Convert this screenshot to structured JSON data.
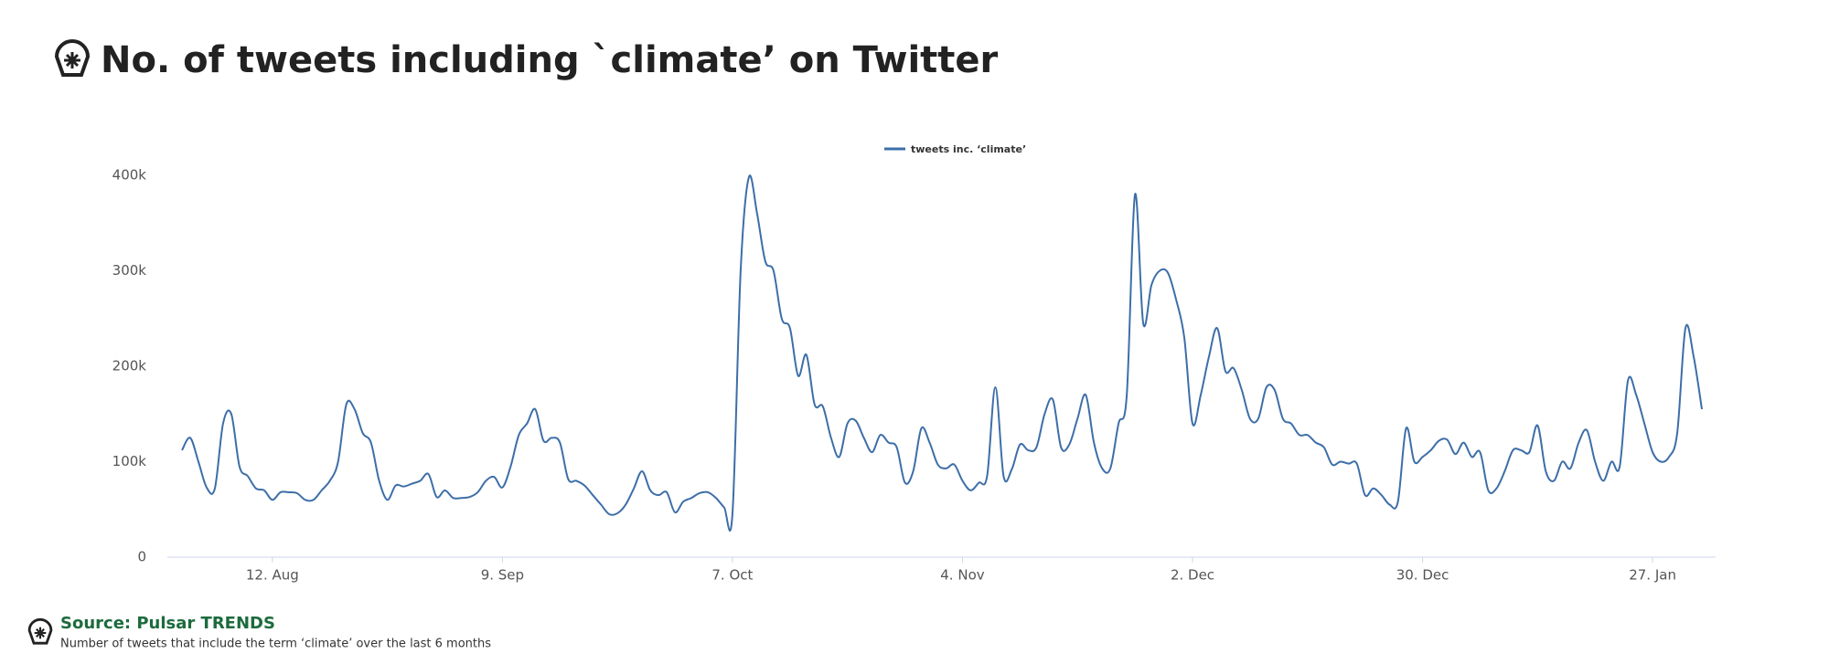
{
  "chart_data": {
    "type": "line",
    "title": "No. of tweets including `climate’ on Twitter",
    "source": "Source: Pulsar TRENDS",
    "note": "Number of tweets that include the term ‘climate’ over the last 6 months",
    "x": [
      "1. Aug",
      "2. Aug",
      "3. Aug",
      "4. Aug",
      "5. Aug",
      "6. Aug",
      "7. Aug",
      "8. Aug",
      "9. Aug",
      "10. Aug",
      "11. Aug",
      "12. Aug",
      "13. Aug",
      "14. Aug",
      "15. Aug",
      "16. Aug",
      "17. Aug",
      "18. Aug",
      "19. Aug",
      "20. Aug",
      "21. Aug",
      "22. Aug",
      "23. Aug",
      "24. Aug",
      "25. Aug",
      "26. Aug",
      "27. Aug",
      "28. Aug",
      "29. Aug",
      "30. Aug",
      "31. Aug",
      "1. Sep",
      "2. Sep",
      "3. Sep",
      "4. Sep",
      "5. Sep",
      "6. Sep",
      "7. Sep",
      "8. Sep",
      "9. Sep",
      "10. Sep",
      "11. Sep",
      "12. Sep",
      "13. Sep",
      "14. Sep",
      "15. Sep",
      "16. Sep",
      "17. Sep",
      "18. Sep",
      "19. Sep",
      "20. Sep",
      "21. Sep",
      "22. Sep",
      "23. Sep",
      "24. Sep",
      "25. Sep",
      "26. Sep",
      "27. Sep",
      "28. Sep",
      "29. Sep",
      "30. Sep",
      "1. Oct",
      "2. Oct",
      "3. Oct",
      "4. Oct",
      "5. Oct",
      "6. Oct",
      "7. Oct",
      "8. Oct",
      "9. Oct",
      "10. Oct",
      "11. Oct",
      "12. Oct",
      "13. Oct",
      "14. Oct",
      "15. Oct",
      "16. Oct",
      "17. Oct",
      "18. Oct",
      "19. Oct",
      "20. Oct",
      "21. Oct",
      "22. Oct",
      "23. Oct",
      "24. Oct",
      "25. Oct",
      "26. Oct",
      "27. Oct",
      "28. Oct",
      "29. Oct",
      "30. Oct",
      "31. Oct",
      "1. Nov",
      "2. Nov",
      "3. Nov",
      "4. Nov",
      "5. Nov",
      "6. Nov",
      "7. Nov",
      "8. Nov",
      "9. Nov",
      "10. Nov",
      "11. Nov",
      "12. Nov",
      "13. Nov",
      "14. Nov",
      "15. Nov",
      "16. Nov",
      "17. Nov",
      "18. Nov",
      "19. Nov",
      "20. Nov",
      "21. Nov",
      "22. Nov",
      "23. Nov",
      "24. Nov",
      "25. Nov",
      "26. Nov",
      "27. Nov",
      "28. Nov",
      "29. Nov",
      "30. Nov",
      "1. Dec",
      "2. Dec",
      "3. Dec",
      "4. Dec",
      "5. Dec",
      "6. Dec",
      "7. Dec",
      "8. Dec",
      "9. Dec",
      "10. Dec",
      "11. Dec",
      "12. Dec",
      "13. Dec",
      "14. Dec",
      "15. Dec",
      "16. Dec",
      "17. Dec",
      "18. Dec",
      "19. Dec",
      "20. Dec",
      "21. Dec",
      "22. Dec",
      "23. Dec",
      "24. Dec",
      "25. Dec",
      "26. Dec",
      "27. Dec",
      "28. Dec",
      "29. Dec",
      "30. Dec",
      "31. Dec",
      "1. Jan",
      "2. Jan",
      "3. Jan",
      "4. Jan",
      "5. Jan",
      "6. Jan",
      "7. Jan",
      "8. Jan",
      "9. Jan",
      "10. Jan",
      "11. Jan",
      "12. Jan",
      "13. Jan",
      "14. Jan",
      "15. Jan",
      "16. Jan",
      "17. Jan",
      "18. Jan",
      "19. Jan",
      "20. Jan",
      "21. Jan",
      "22. Jan",
      "23. Jan",
      "24. Jan",
      "25. Jan",
      "26. Jan",
      "27. Jan",
      "28. Jan",
      "29. Jan",
      "30. Jan",
      "31. Jan",
      "1. Feb",
      "2. Feb"
    ],
    "series": [
      {
        "name": "tweets inc. ‘climate’",
        "color": "#3d6ea8",
        "values": [
          112000,
          125000,
          100000,
          73000,
          72000,
          140000,
          150000,
          95000,
          85000,
          72000,
          70000,
          60000,
          68000,
          68000,
          67000,
          60000,
          60000,
          70000,
          80000,
          100000,
          160000,
          155000,
          130000,
          120000,
          80000,
          60000,
          75000,
          74000,
          77000,
          80000,
          87000,
          63000,
          70000,
          62000,
          62000,
          63000,
          68000,
          80000,
          84000,
          73000,
          95000,
          128000,
          140000,
          155000,
          122000,
          125000,
          120000,
          82000,
          80000,
          75000,
          65000,
          55000,
          45000,
          46000,
          55000,
          72000,
          90000,
          70000,
          65000,
          68000,
          47000,
          58000,
          62000,
          67000,
          68000,
          62000,
          52000,
          45000,
          300000,
          398000,
          360000,
          310000,
          300000,
          250000,
          240000,
          190000,
          212000,
          160000,
          158000,
          125000,
          105000,
          140000,
          143000,
          125000,
          110000,
          128000,
          120000,
          115000,
          78000,
          90000,
          135000,
          120000,
          97000,
          93000,
          97000,
          80000,
          70000,
          78000,
          85000,
          178000,
          85000,
          92000,
          118000,
          112000,
          115000,
          150000,
          165000,
          115000,
          118000,
          145000,
          170000,
          120000,
          93000,
          93000,
          140000,
          170000,
          380000,
          245000,
          285000,
          300000,
          298000,
          270000,
          230000,
          140000,
          170000,
          210000,
          240000,
          195000,
          198000,
          175000,
          145000,
          145000,
          178000,
          175000,
          145000,
          140000,
          128000,
          128000,
          120000,
          115000,
          97000,
          100000,
          98000,
          98000,
          65000,
          72000,
          65000,
          55000,
          58000,
          135000,
          100000,
          105000,
          112000,
          122000,
          123000,
          108000,
          120000,
          105000,
          110000,
          70000,
          72000,
          90000,
          112000,
          112000,
          110000,
          138000,
          90000,
          80000,
          100000,
          93000,
          120000,
          133000,
          100000,
          80000,
          100000,
          95000,
          185000,
          170000,
          140000,
          110000,
          100000,
          105000,
          130000,
          240000,
          210000,
          155000
        ]
      }
    ],
    "xticks": [
      "12. Aug",
      "9. Sep",
      "7. Oct",
      "4. Nov",
      "2. Dec",
      "30. Dec",
      "27. Jan"
    ],
    "ylim": [
      0,
      400000
    ],
    "yticks": [
      0,
      {
        "value": 100000,
        "label": "100k"
      },
      {
        "value": 200000,
        "label": "200k"
      },
      {
        "value": 300000,
        "label": "300k"
      },
      {
        "value": 400000,
        "label": "400k"
      }
    ],
    "grid": false
  }
}
